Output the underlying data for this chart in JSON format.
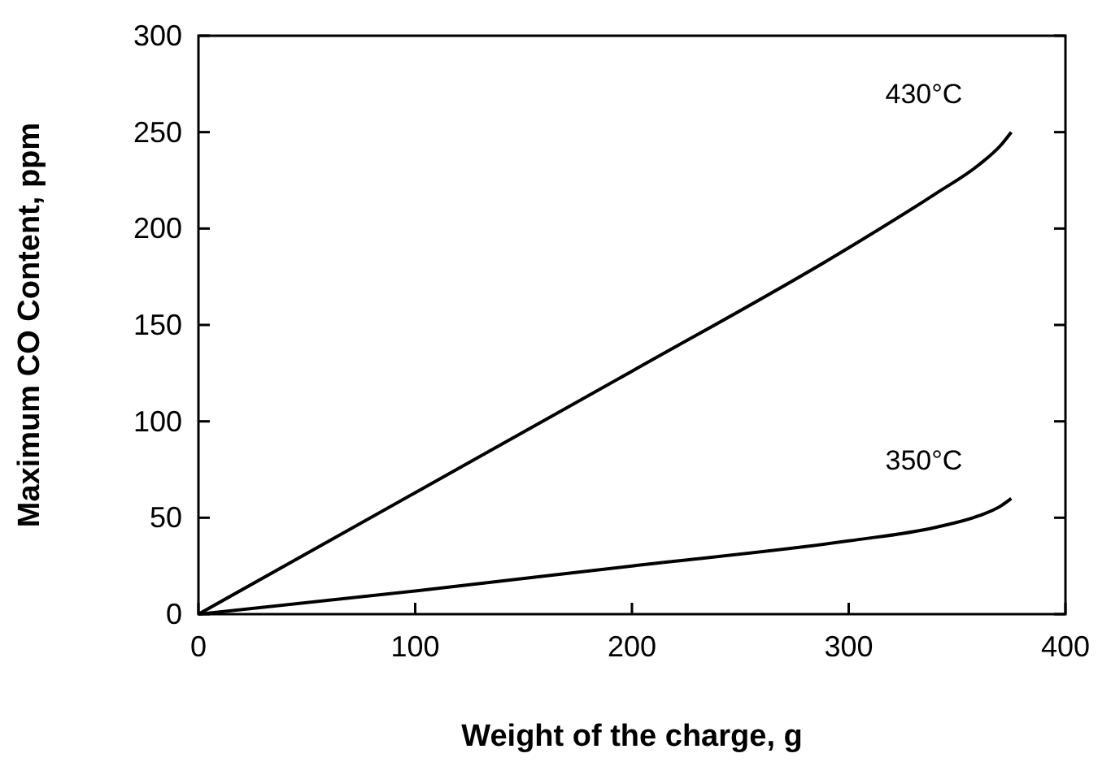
{
  "chart_data": {
    "type": "line",
    "xlabel": "Weight of the charge, g",
    "ylabel": "Maximum CO Content, ppm",
    "xlim": [
      0,
      400
    ],
    "xticks": [
      0,
      100,
      200,
      300,
      400
    ],
    "ylim": [
      0,
      300
    ],
    "yticks": [
      0,
      50,
      100,
      150,
      200,
      250,
      300
    ],
    "grid": false,
    "legend": false,
    "marker": "none",
    "line_style": "solid",
    "series": [
      {
        "name": "430°C",
        "color": "#000000",
        "x": [
          0,
          100,
          200,
          300,
          340,
          360,
          370,
          375
        ],
        "values": [
          0,
          63,
          126,
          190,
          218,
          233,
          243,
          250
        ]
      },
      {
        "name": "350°C",
        "color": "#000000",
        "x": [
          0,
          100,
          200,
          300,
          340,
          360,
          370,
          375
        ],
        "values": [
          0,
          12,
          25,
          38,
          45,
          51,
          56,
          60
        ]
      }
    ]
  }
}
